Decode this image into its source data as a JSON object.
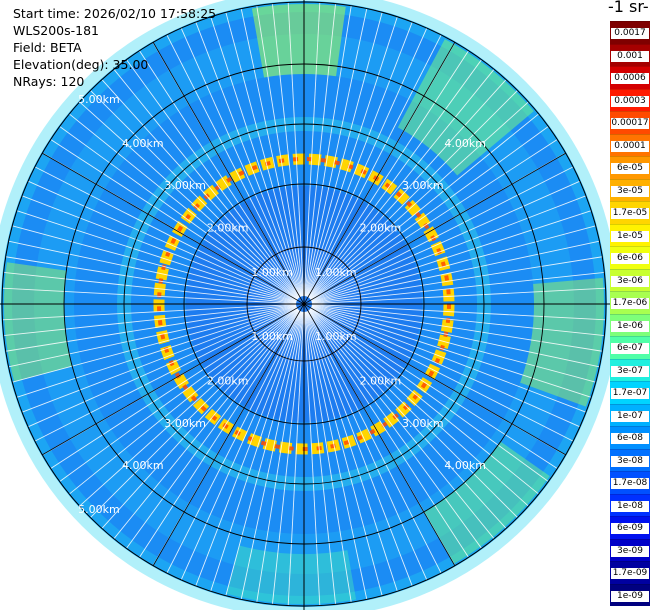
{
  "info": {
    "start_time": "Start time: 2026/02/10 17:58:25",
    "instrument": "WLS200s-181",
    "field": "Field: BETA",
    "elevation": "Elevation(deg): 35.00",
    "nrays": "NRays: 120"
  },
  "colorbar": {
    "title": "-1 sr-",
    "labels": [
      "0.0017",
      "0.001",
      "0.0006",
      "0.0003",
      "0.00017",
      "0.0001",
      "6e-05",
      "3e-05",
      "1.7e-05",
      "1e-05",
      "6e-06",
      "3e-06",
      "1.7e-06",
      "1e-06",
      "6e-07",
      "3e-07",
      "1.7e-07",
      "1e-07",
      "6e-08",
      "3e-08",
      "1.7e-08",
      "1e-08",
      "6e-09",
      "3e-09",
      "1.7e-09",
      "1e-09"
    ],
    "colors": [
      "#7f0000",
      "#a50000",
      "#d40000",
      "#ff1a00",
      "#ff4a00",
      "#ff7400",
      "#ff9800",
      "#ffb000",
      "#ffd500",
      "#fff200",
      "#f0ff10",
      "#c8ff30",
      "#a8ff50",
      "#7dff7a",
      "#50ffa8",
      "#20f0df",
      "#00d4ff",
      "#00b0ff",
      "#0090ff",
      "#0070ff",
      "#0050ff",
      "#0030ff",
      "#0010ef",
      "#0000c8",
      "#0000a0",
      "#000080"
    ]
  },
  "chart_data": {
    "type": "heatmap",
    "projection": "polar (PPI)",
    "elevation_deg": 35.0,
    "nrays": 120,
    "range_km": [
      0,
      5.5
    ],
    "ring_labels": [
      "1.00km",
      "2.00km",
      "3.00km",
      "4.00km",
      "5.00km"
    ],
    "ring_values_km": [
      1,
      2,
      3,
      4,
      5
    ],
    "features": {
      "high_backscatter_ring_km": 2.75,
      "high_backscatter_value": "1.7e-05 to 1e-04",
      "background_value": "1e-08 to 1e-07"
    }
  }
}
